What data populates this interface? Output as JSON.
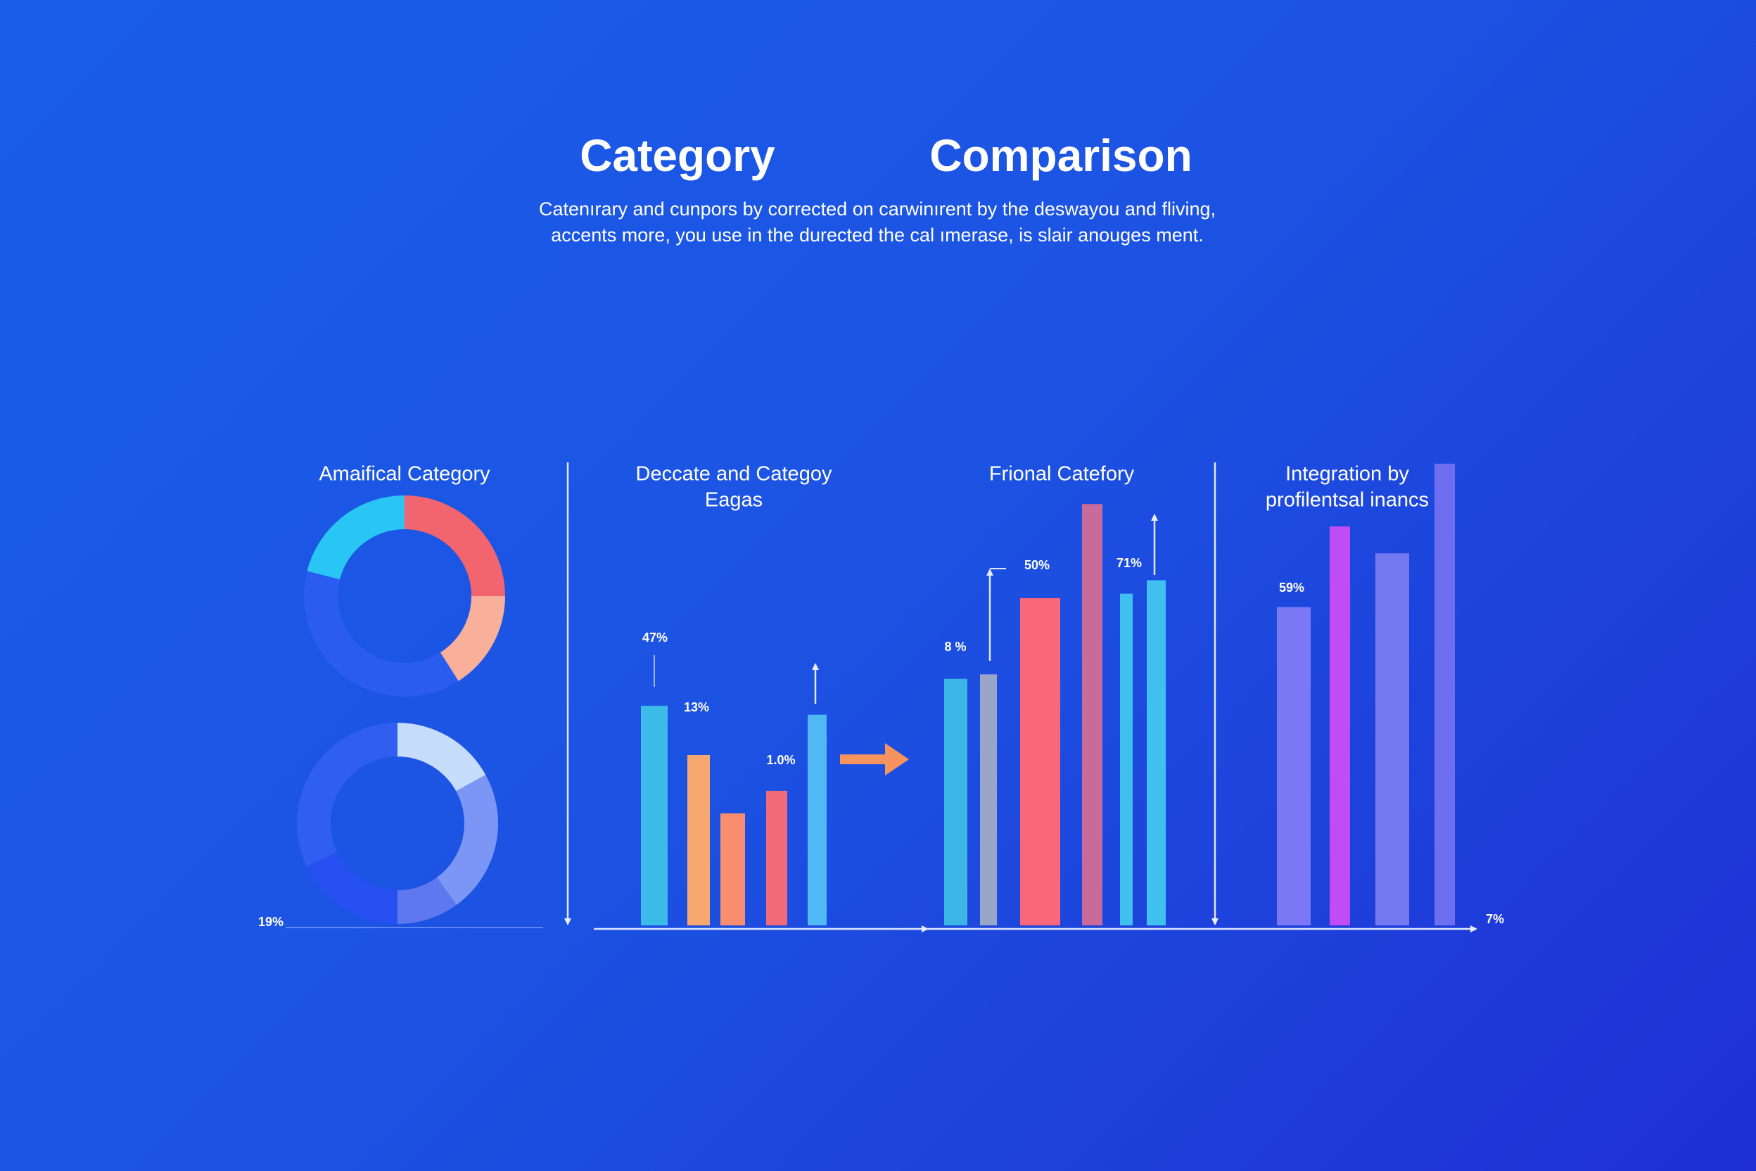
{
  "header": {
    "title": [
      "Category",
      "Comparison"
    ],
    "subtitle": [
      "Catenırary and cunpors by corrected on carwinırent by the deswayou and fliving,",
      "accents more, you use in the durected the cal ımerase, is slair anouges ment."
    ]
  },
  "chart_data": [
    {
      "type": "pie",
      "title_lines": [
        "Amaifical Category"
      ],
      "values": [
        25,
        16,
        38,
        21
      ],
      "colors": [
        "#f2656f",
        "#f9b09a",
        "#2a5cf0",
        "#29c6f5"
      ]
    },
    {
      "type": "pie",
      "values": [
        17,
        23,
        10,
        18,
        32
      ],
      "colors": [
        "#c5dcfb",
        "#7b96f5",
        "#5f78ef",
        "#2650f2",
        "#2f5ef0"
      ],
      "annotations": [
        "19%"
      ]
    },
    {
      "type": "bar",
      "title_lines": [
        "Deccate and Categoy",
        "Eagas"
      ],
      "values": [
        49,
        38,
        25,
        30,
        47
      ],
      "colors": [
        "#3dbbe8",
        "#f7a86e",
        "#f98f70",
        "#f26a78",
        "#4fb8f5"
      ],
      "annotations": [
        "47%",
        "13%",
        "1.0%"
      ]
    },
    {
      "type": "bar",
      "title_lines": [
        "Frional Catefory"
      ],
      "values": [
        55,
        56,
        73,
        94,
        74,
        77
      ],
      "colors": [
        "#3ab5e6",
        "#9aa6c8",
        "#f9677a",
        "#c86a9a",
        "#3fc0ee",
        "#3fc0ee"
      ],
      "annotations": [
        "8 %",
        "50%",
        "71%"
      ]
    },
    {
      "type": "bar",
      "title_lines": [
        "Integration by",
        "profilentsal inancs"
      ],
      "values": [
        71,
        89,
        83,
        103
      ],
      "colors": [
        "#7b78f5",
        "#c04cf5",
        "#7479f2",
        "#6d6ef0"
      ],
      "annotations": [
        "59%",
        "7%"
      ]
    }
  ]
}
